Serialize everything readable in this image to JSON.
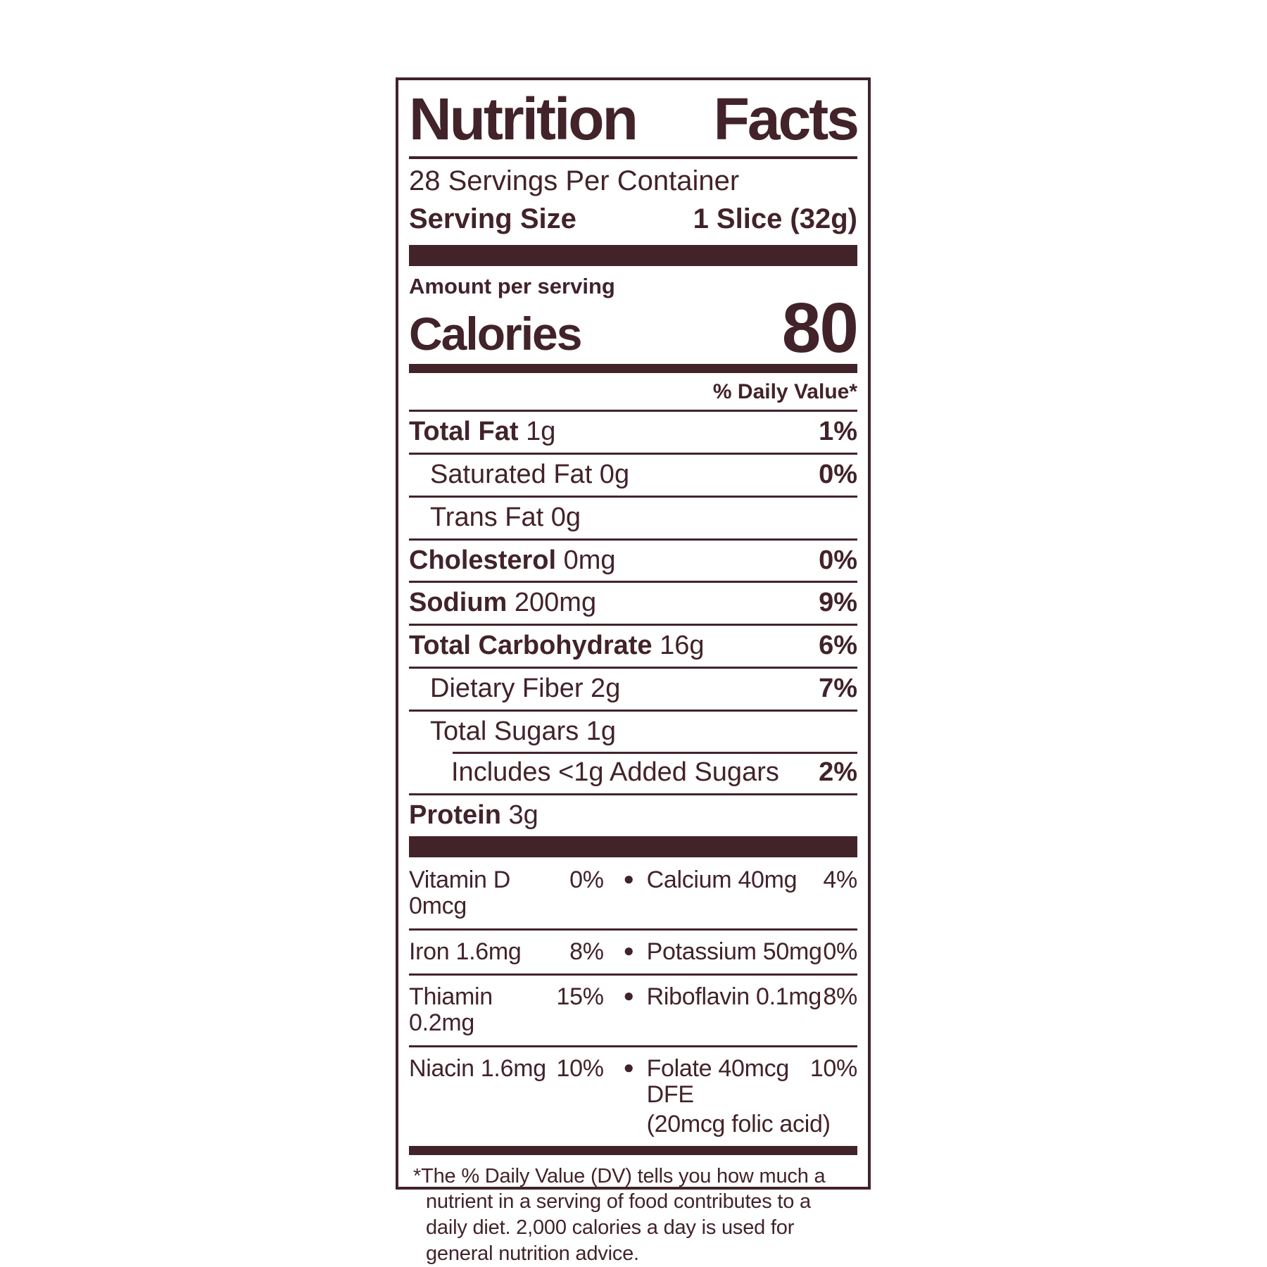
{
  "colors": {
    "brand": "#42232A",
    "background": "#FFFFFF"
  },
  "label": {
    "title_left": "Nutrition",
    "title_right": "Facts",
    "servings_per_container": "28 Servings Per Container",
    "serving_size_label": "Serving Size",
    "serving_size_value": "1 Slice (32g)",
    "amount_per_serving": "Amount per serving",
    "calories_label": "Calories",
    "calories_value": "80",
    "daily_value_header": "% Daily Value*",
    "bullet_icon": "●",
    "nutrients": [
      {
        "name": "Total Fat",
        "amount": "1g",
        "dv": "1%",
        "bold": true,
        "indent": 0,
        "rule_indent": false
      },
      {
        "name": "Saturated Fat",
        "amount": "0g",
        "dv": "0%",
        "bold": false,
        "indent": 1,
        "rule_indent": false
      },
      {
        "name": "Trans Fat",
        "amount": "0g",
        "dv": "",
        "bold": false,
        "indent": 1,
        "rule_indent": false
      },
      {
        "name": "Cholesterol",
        "amount": "0mg",
        "dv": "0%",
        "bold": true,
        "indent": 0,
        "rule_indent": false
      },
      {
        "name": "Sodium",
        "amount": "200mg",
        "dv": "9%",
        "bold": true,
        "indent": 0,
        "rule_indent": false
      },
      {
        "name": "Total Carbohydrate",
        "amount": "16g",
        "dv": "6%",
        "bold": true,
        "indent": 0,
        "rule_indent": false
      },
      {
        "name": "Dietary Fiber",
        "amount": "2g",
        "dv": "7%",
        "bold": false,
        "indent": 1,
        "rule_indent": false
      },
      {
        "name": "Total Sugars",
        "amount": "1g",
        "dv": "",
        "bold": false,
        "indent": 1,
        "rule_indent": false
      },
      {
        "name": "Includes <1g Added Sugars",
        "amount": "",
        "dv": "2%",
        "bold": false,
        "indent": 2,
        "rule_indent": true
      },
      {
        "name": "Protein",
        "amount": "3g",
        "dv": "",
        "bold": true,
        "indent": 0,
        "rule_indent": false
      }
    ],
    "micronutrients": [
      {
        "left": "Vitamin D 0mcg",
        "left_dv": "0%",
        "right": "Calcium 40mg",
        "right_dv": "4%",
        "right_note": ""
      },
      {
        "left": "Iron 1.6mg",
        "left_dv": "8%",
        "right": "Potassium 50mg",
        "right_dv": "0%",
        "right_note": ""
      },
      {
        "left": "Thiamin 0.2mg",
        "left_dv": "15%",
        "right": "Riboflavin 0.1mg",
        "right_dv": "8%",
        "right_note": ""
      },
      {
        "left": "Niacin 1.6mg",
        "left_dv": "10%",
        "right": "Folate 40mcg DFE",
        "right_dv": "10%",
        "right_note": "(20mcg folic acid)"
      }
    ],
    "footnote": "*The % Daily Value (DV) tells you how much a nutrient in a serving of food contributes to a daily diet. 2,000 calories a day is used for general nutrition advice."
  }
}
